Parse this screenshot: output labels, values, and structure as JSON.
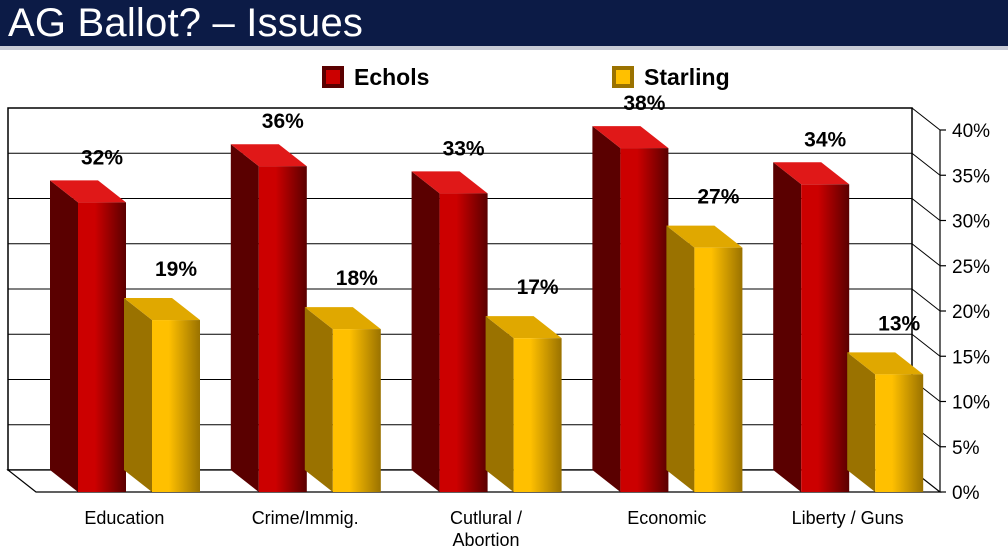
{
  "title": "AG Ballot? – Issues",
  "chart_data": {
    "type": "bar",
    "title": "AG Ballot? – Issues",
    "categories": [
      "Education",
      "Crime/Immig.",
      "Cutlural / Abortion",
      "Economic",
      "Liberty / Guns"
    ],
    "category_lines": [
      [
        "Education"
      ],
      [
        "Crime/Immig."
      ],
      [
        "Cutlural /",
        "Abortion"
      ],
      [
        "Economic"
      ],
      [
        "Liberty / Guns"
      ]
    ],
    "series": [
      {
        "name": "Echols",
        "values": [
          32,
          36,
          33,
          38,
          34
        ],
        "labels": [
          "32%",
          "36%",
          "33%",
          "38%",
          "34%"
        ],
        "color": "#cc0000",
        "dark": "#5a0000",
        "top": "#e01818"
      },
      {
        "name": "Starling",
        "values": [
          19,
          18,
          17,
          27,
          13
        ],
        "labels": [
          "19%",
          "18%",
          "17%",
          "27%",
          "13%"
        ],
        "color": "#ffc000",
        "dark": "#9a7200",
        "top": "#e0a800"
      }
    ],
    "ylim": [
      0,
      40
    ],
    "yticks": [
      0,
      5,
      10,
      15,
      20,
      25,
      30,
      35,
      40
    ],
    "ytick_labels": [
      "0%",
      "5%",
      "10%",
      "15%",
      "20%",
      "25%",
      "30%",
      "35%",
      "40%"
    ],
    "y_axis_side": "right",
    "legend_position": "top",
    "grid": true,
    "xlabel": "",
    "ylabel": ""
  }
}
